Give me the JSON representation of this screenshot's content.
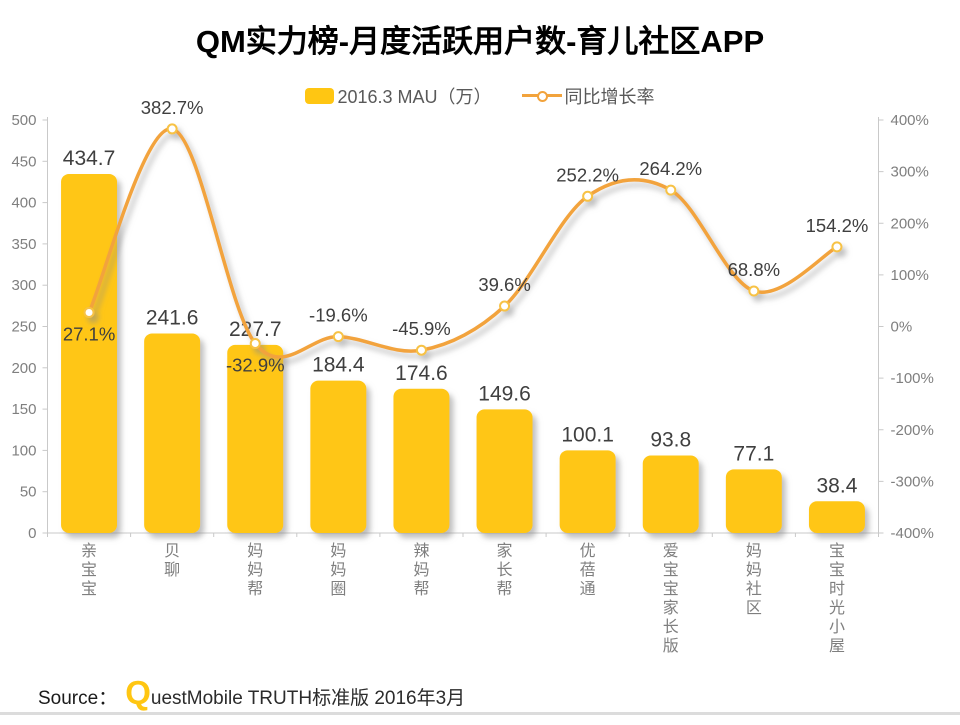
{
  "title": "QM实力榜-月度活跃用户数-育儿社区APP",
  "legend": [
    {
      "label": "2016.3 MAU（万）",
      "type": "bar",
      "color": "#FFC612"
    },
    {
      "label": "同比增长率",
      "type": "line",
      "color": "#F2A33C"
    }
  ],
  "source": {
    "label": "Source：",
    "logo": "Q",
    "text": "uestMobile TRUTH标准版 2016年3月"
  },
  "colors": {
    "bar": "#FFC612",
    "line": "#F2A33C",
    "marker_fill": "#FFFFFF",
    "marker_ring": "#F7C244",
    "data_label": "#3F3F3F",
    "axis_label": "#7F7F7F",
    "axis_line": "#C9C9C9",
    "title": "#000000",
    "legend_text": "#595959"
  },
  "chart_data": {
    "type": "bar",
    "combo": "bar+line",
    "title": "QM实力榜-月度活跃用户数-育儿社区APP",
    "categories": [
      "亲宝宝",
      "贝聊",
      "妈妈帮",
      "妈妈圈",
      "辣妈帮",
      "家长帮",
      "优蓓通",
      "爱宝宝家长版",
      "妈妈社区",
      "宝宝时光小屋"
    ],
    "series": [
      {
        "name": "2016.3 MAU（万）",
        "type": "bar",
        "axis": "left",
        "color": "#FFC612",
        "values": [
          434.7,
          241.6,
          227.7,
          184.4,
          174.6,
          149.6,
          100.1,
          93.8,
          77.1,
          38.4
        ],
        "labels": [
          "434.7",
          "241.6",
          "227.7",
          "184.4",
          "174.6",
          "149.6",
          "100.1",
          "93.8",
          "77.1",
          "38.4"
        ]
      },
      {
        "name": "同比增长率",
        "type": "line",
        "smooth": true,
        "axis": "right",
        "color": "#F2A33C",
        "values": [
          27.1,
          382.7,
          -32.9,
          -19.6,
          -45.9,
          39.6,
          252.2,
          264.2,
          68.8,
          154.2
        ],
        "labels": [
          "27.1%",
          "382.7%",
          "-32.9%",
          "-19.6%",
          "-45.9%",
          "39.6%",
          "252.2%",
          "264.2%",
          "68.8%",
          "154.2%"
        ]
      }
    ],
    "left_axis": {
      "min": 0,
      "max": 500,
      "step": 50,
      "ticks": [
        "0",
        "50",
        "100",
        "150",
        "200",
        "250",
        "300",
        "350",
        "400",
        "450",
        "500"
      ]
    },
    "right_axis": {
      "min": -400,
      "max": 400,
      "step": 100,
      "ticks": [
        "400%",
        "300%",
        "200%",
        "100%",
        "0%",
        "-100%",
        "-200%",
        "-300%",
        "-400%"
      ]
    },
    "grid": false,
    "legend_position": "top",
    "label_below_indices": [
      0,
      2
    ]
  }
}
